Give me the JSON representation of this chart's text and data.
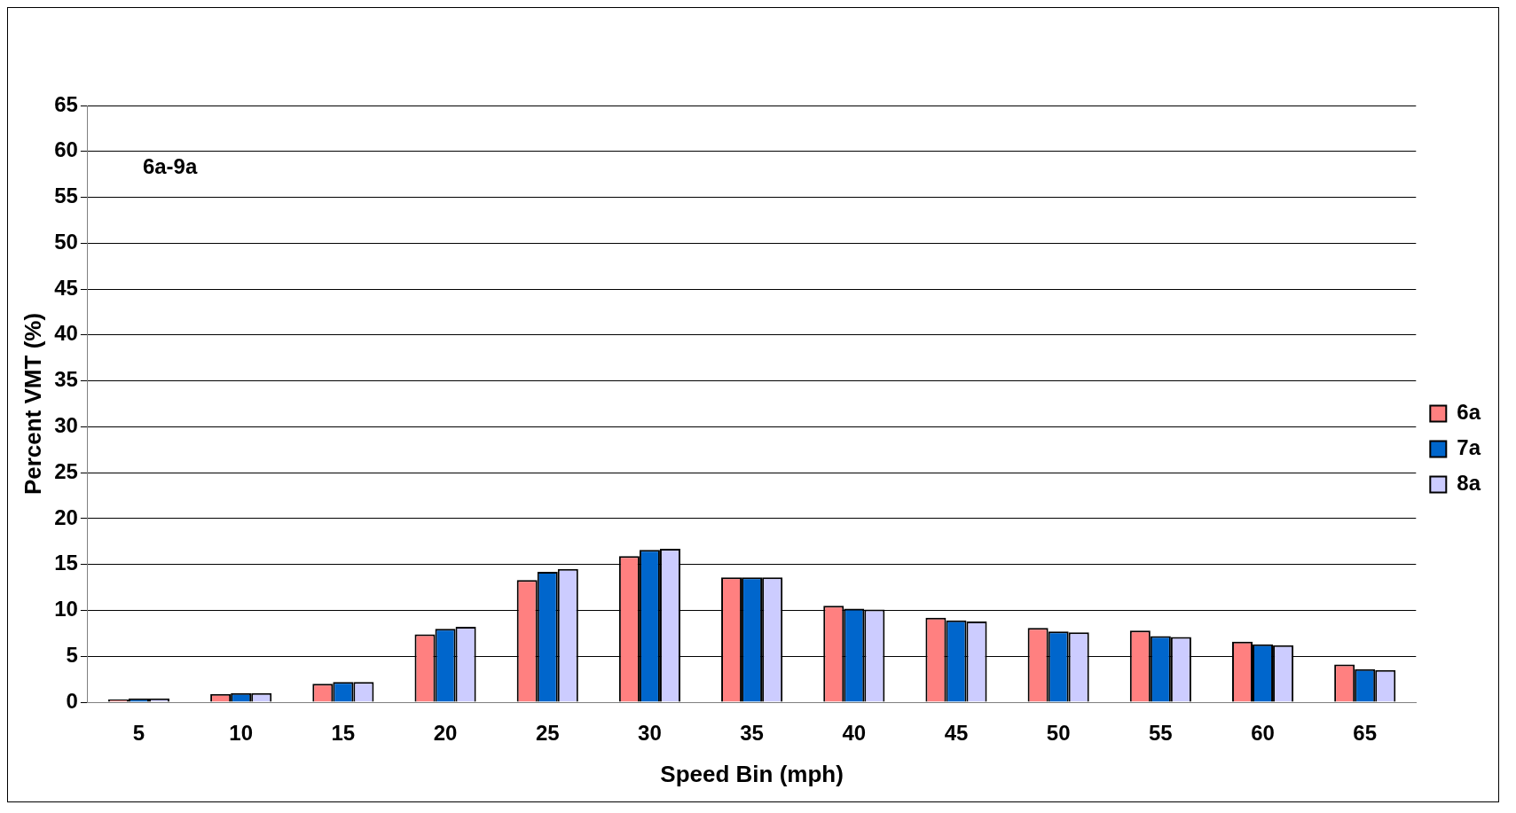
{
  "chart_data": {
    "type": "bar",
    "xlabel": "Speed Bin (mph)",
    "ylabel": "Percent VMT (%)",
    "annotations": [
      "6a-9a"
    ],
    "categories": [
      "5",
      "10",
      "15",
      "20",
      "25",
      "30",
      "35",
      "40",
      "45",
      "50",
      "55",
      "60",
      "65"
    ],
    "series": [
      {
        "name": "6a",
        "color": "#ff8080",
        "values": [
          0.3,
          0.9,
          2.0,
          7.4,
          13.3,
          15.9,
          13.6,
          10.5,
          9.2,
          8.1,
          7.8,
          6.6,
          4.1
        ]
      },
      {
        "name": "7a",
        "color": "#0066cc",
        "values": [
          0.4,
          1.0,
          2.2,
          8.0,
          14.2,
          16.6,
          13.6,
          10.2,
          8.9,
          7.7,
          7.2,
          6.3,
          3.6
        ]
      },
      {
        "name": "8a",
        "color": "#ccccff",
        "values": [
          0.4,
          1.0,
          2.2,
          8.2,
          14.5,
          16.7,
          13.6,
          10.1,
          8.8,
          7.6,
          7.1,
          6.2,
          3.5
        ]
      }
    ],
    "ylim": [
      0,
      65
    ],
    "yticks": [
      0,
      5,
      10,
      15,
      20,
      25,
      30,
      35,
      40,
      45,
      50,
      55,
      60,
      65
    ],
    "grid": "y",
    "legend": "right"
  }
}
